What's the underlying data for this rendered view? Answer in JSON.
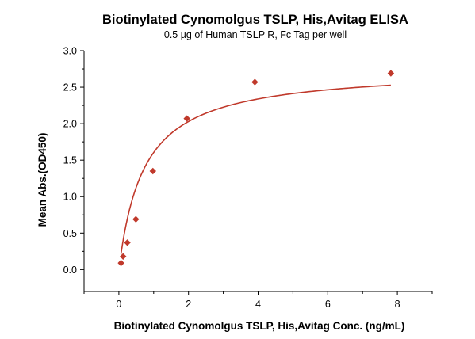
{
  "chart_data": {
    "type": "scatter",
    "title": "Biotinylated Cynomolgus TSLP, His,Avitag ELISA",
    "subtitle": "0.5 µg of Human TSLP R, Fc Tag per well",
    "xlabel": "Biotinylated Cynomolgus TSLP, His,Avitag Conc. (ng/mL)",
    "ylabel": "Mean Abs.(OD450)",
    "xlim": [
      -1,
      9
    ],
    "ylim": [
      -0.3,
      3.0
    ],
    "xticks": [
      0,
      2,
      4,
      6,
      8
    ],
    "yticks": [
      0.0,
      0.5,
      1.0,
      1.5,
      2.0,
      2.5,
      3.0
    ],
    "xtick_labels": [
      "0",
      "2",
      "4",
      "6",
      "8"
    ],
    "ytick_labels": [
      "0.0",
      "0.5",
      "1.0",
      "1.5",
      "2.0",
      "2.5",
      "3.0"
    ],
    "grid": false,
    "series": [
      {
        "points": [
          {
            "x": 0.061,
            "y": 0.09
          },
          {
            "x": 0.122,
            "y": 0.18
          },
          {
            "x": 0.244,
            "y": 0.37
          },
          {
            "x": 0.488,
            "y": 0.69
          },
          {
            "x": 0.977,
            "y": 1.35
          },
          {
            "x": 1.953,
            "y": 2.07
          },
          {
            "x": 3.906,
            "y": 2.57
          },
          {
            "x": 7.813,
            "y": 2.69
          }
        ],
        "fit_curve": {
          "model": "hyperbolic",
          "ymax": 2.76,
          "kd": 0.72,
          "x_range": [
            0.061,
            7.813
          ]
        }
      }
    ],
    "colors": {
      "series": "#c0392b",
      "axes": "#000000"
    }
  }
}
